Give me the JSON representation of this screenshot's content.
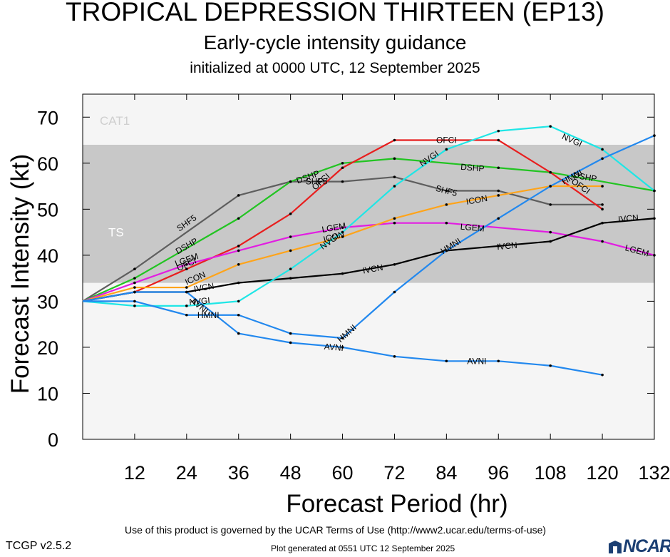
{
  "header": {
    "title": "TROPICAL DEPRESSION THIRTEEN (EP13)",
    "subtitle": "Early-cycle intensity guidance",
    "initialized": "initialized at 0000 UTC, 12 September 2025"
  },
  "footer": {
    "terms": "Use of this product is governed by the UCAR Terms of Use (http://www2.ucar.edu/terms-of-use)",
    "version": "TCGP v2.5.2",
    "generated": "Plot generated at 0551 UTC   12 September 2025",
    "logo_text": "NCAR",
    "logo_color": "#1b3f73"
  },
  "chart_data": {
    "type": "line",
    "xlabel": "Forecast Period (hr)",
    "ylabel": "Forecast Intensity (kt)",
    "xlim": [
      0,
      132
    ],
    "ylim": [
      0,
      75
    ],
    "xticks": [
      12,
      24,
      36,
      48,
      60,
      72,
      84,
      96,
      108,
      120,
      132
    ],
    "yticks": [
      0,
      10,
      20,
      30,
      40,
      50,
      60,
      70
    ],
    "bands": [
      {
        "label": "TS",
        "from": 34,
        "to": 64,
        "color": "#c8c8c8"
      },
      {
        "label": "CAT1",
        "from": 64,
        "to": 75,
        "color": "#f5f5f5"
      }
    ],
    "below_band_color": "#f5f5f5",
    "series": [
      {
        "name": "SHF5",
        "color": "#5e5e5e",
        "points": [
          [
            0,
            30
          ],
          [
            12,
            37
          ],
          [
            36,
            53
          ],
          [
            48,
            56
          ],
          [
            60,
            56
          ],
          [
            72,
            57
          ],
          [
            84,
            54
          ],
          [
            96,
            54
          ],
          [
            108,
            51
          ],
          [
            120,
            51
          ]
        ],
        "labels": [
          [
            24,
            47
          ],
          [
            54,
            56
          ],
          [
            84,
            54
          ]
        ]
      },
      {
        "name": "DSHP",
        "color": "#22c422",
        "points": [
          [
            0,
            30
          ],
          [
            12,
            35
          ],
          [
            36,
            48
          ],
          [
            48,
            56
          ],
          [
            60,
            60
          ],
          [
            72,
            61
          ],
          [
            96,
            59
          ],
          [
            108,
            58
          ],
          [
            132,
            54
          ]
        ],
        "labels": [
          [
            24,
            42
          ],
          [
            52,
            57
          ],
          [
            90,
            59
          ],
          [
            116,
            57
          ]
        ]
      },
      {
        "name": "OFCI",
        "color": "#e81e1e",
        "points": [
          [
            0,
            30
          ],
          [
            12,
            32
          ],
          [
            24,
            37
          ],
          [
            36,
            42
          ],
          [
            48,
            49
          ],
          [
            60,
            59
          ],
          [
            72,
            65
          ],
          [
            96,
            65
          ],
          [
            108,
            58
          ],
          [
            120,
            50
          ]
        ],
        "labels": [
          [
            24,
            38
          ],
          [
            55,
            56
          ],
          [
            84,
            65
          ],
          [
            115,
            55
          ]
        ]
      },
      {
        "name": "LGEM",
        "color": "#e21de2",
        "points": [
          [
            0,
            30
          ],
          [
            12,
            34
          ],
          [
            24,
            38
          ],
          [
            36,
            41
          ],
          [
            48,
            44
          ],
          [
            60,
            46
          ],
          [
            72,
            47
          ],
          [
            84,
            47
          ],
          [
            108,
            45
          ],
          [
            120,
            43
          ],
          [
            132,
            40
          ]
        ],
        "labels": [
          [
            24,
            39
          ],
          [
            58,
            46
          ],
          [
            90,
            46
          ],
          [
            128,
            41
          ]
        ]
      },
      {
        "name": "ICON",
        "color": "#ffa41a",
        "points": [
          [
            0,
            30
          ],
          [
            12,
            33
          ],
          [
            24,
            33
          ],
          [
            36,
            38
          ],
          [
            48,
            41
          ],
          [
            60,
            44
          ],
          [
            72,
            48
          ],
          [
            84,
            51
          ],
          [
            96,
            53
          ],
          [
            108,
            55
          ],
          [
            120,
            55
          ]
        ],
        "labels": [
          [
            26,
            35
          ],
          [
            58,
            44
          ],
          [
            91,
            52
          ]
        ]
      },
      {
        "name": "IVCN",
        "color": "#000000",
        "points": [
          [
            0,
            30
          ],
          [
            12,
            32
          ],
          [
            24,
            32
          ],
          [
            36,
            34
          ],
          [
            48,
            35
          ],
          [
            60,
            36
          ],
          [
            72,
            38
          ],
          [
            84,
            41
          ],
          [
            96,
            42
          ],
          [
            108,
            43
          ],
          [
            120,
            47
          ],
          [
            132,
            48
          ]
        ],
        "labels": [
          [
            28,
            33
          ],
          [
            67,
            37
          ],
          [
            98,
            42
          ],
          [
            126,
            48
          ]
        ]
      },
      {
        "name": "NVGI",
        "color": "#1fe6e6",
        "points": [
          [
            0,
            30
          ],
          [
            12,
            29
          ],
          [
            24,
            29
          ],
          [
            36,
            30
          ],
          [
            48,
            37
          ],
          [
            60,
            45
          ],
          [
            72,
            55
          ],
          [
            84,
            63
          ],
          [
            96,
            67
          ],
          [
            108,
            68
          ],
          [
            120,
            63
          ],
          [
            132,
            54
          ]
        ],
        "labels": [
          [
            27,
            30
          ],
          [
            57,
            43
          ],
          [
            80,
            61
          ],
          [
            113,
            65
          ]
        ]
      },
      {
        "name": "HMNI",
        "color": "#2288ee",
        "points": [
          [
            0,
            30
          ],
          [
            12,
            30
          ],
          [
            24,
            27
          ],
          [
            36,
            27
          ],
          [
            48,
            23
          ],
          [
            60,
            22
          ],
          [
            72,
            32
          ],
          [
            84,
            41
          ],
          [
            96,
            48
          ],
          [
            108,
            55
          ],
          [
            120,
            61
          ],
          [
            132,
            66
          ]
        ],
        "labels": [
          [
            29,
            27
          ],
          [
            61,
            23
          ],
          [
            85,
            42
          ],
          [
            113,
            57
          ]
        ]
      },
      {
        "name": "AVNI",
        "color": "#2288ee",
        "points": [
          [
            0,
            30
          ],
          [
            12,
            32
          ],
          [
            24,
            32
          ],
          [
            36,
            23
          ],
          [
            48,
            21
          ],
          [
            60,
            20
          ],
          [
            72,
            18
          ],
          [
            84,
            17
          ],
          [
            96,
            17
          ],
          [
            108,
            16
          ],
          [
            120,
            14
          ]
        ],
        "labels": [
          [
            27,
            29
          ],
          [
            58,
            20
          ],
          [
            91,
            17
          ]
        ]
      }
    ]
  }
}
